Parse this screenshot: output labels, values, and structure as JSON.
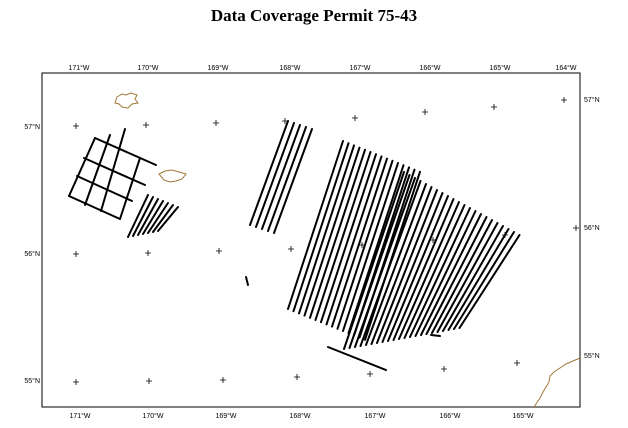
{
  "title": "Data Coverage Permit 75-43",
  "longitude_labels": [
    "171°W",
    "170°W",
    "169°W",
    "168°W",
    "167°W",
    "166°W",
    "165°W",
    "164°W"
  ],
  "latitude_labels": [
    "57°N",
    "56°N",
    "55°N"
  ],
  "colors": {
    "frame": "#000000",
    "track": "#000000",
    "coastline": "#a07838",
    "marker": "#000000"
  },
  "features": [
    {
      "name": "northwest-grid-survey",
      "kind": "survey-track-grid"
    },
    {
      "name": "pribilof-tracklines",
      "kind": "survey-tracklines"
    },
    {
      "name": "central-tracklines",
      "kind": "survey-tracklines"
    },
    {
      "name": "southeast-tracklines",
      "kind": "survey-tracklines"
    },
    {
      "name": "st-george-island",
      "kind": "coastline"
    },
    {
      "name": "st-paul-island",
      "kind": "coastline"
    },
    {
      "name": "alaska-peninsula-coast",
      "kind": "coastline"
    }
  ]
}
